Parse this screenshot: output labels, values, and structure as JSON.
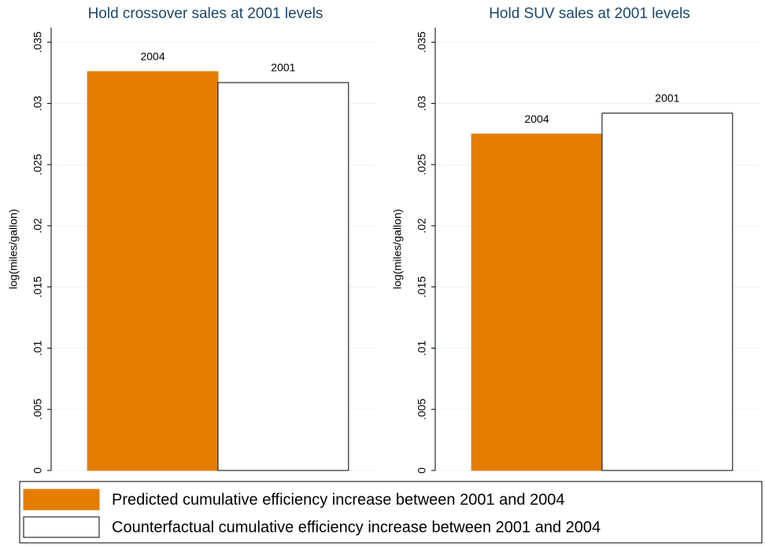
{
  "chart_data": [
    {
      "type": "bar",
      "title": "Hold crossover sales at 2001 levels",
      "y_label": "log(miles/gallon)",
      "bar_labels": [
        "2004",
        "2001"
      ],
      "values": [
        0.0326,
        0.0317
      ],
      "ylim": [
        0,
        0.0362
      ],
      "yticks": [
        0,
        {
          "value": 0.005,
          "label": ".005"
        },
        {
          "value": 0.01,
          "label": ".01"
        },
        {
          "value": 0.015,
          "label": ".015"
        },
        {
          "value": 0.02,
          "label": ".02"
        },
        {
          "value": 0.025,
          "label": ".025"
        },
        {
          "value": 0.03,
          "label": ".03"
        },
        {
          "value": 0.035,
          "label": ".035"
        }
      ],
      "grid": true
    },
    {
      "type": "bar",
      "title": "Hold SUV sales at 2001 levels",
      "y_label": "log(miles/gallon)",
      "bar_labels": [
        "2004",
        "2001"
      ],
      "values": [
        0.0275,
        0.0292
      ],
      "ylim": [
        0,
        0.0362
      ],
      "yticks": [
        0,
        {
          "value": 0.005,
          "label": ".005"
        },
        {
          "value": 0.01,
          "label": ".01"
        },
        {
          "value": 0.015,
          "label": ".015"
        },
        {
          "value": 0.02,
          "label": ".02"
        },
        {
          "value": 0.025,
          "label": ".025"
        },
        {
          "value": 0.03,
          "label": ".03"
        },
        {
          "value": 0.035,
          "label": ".035"
        }
      ],
      "grid": true
    }
  ],
  "legend": [
    {
      "name": "Predicted cumulative efficiency increase between 2001 and 2004",
      "color": "#e37e00"
    },
    {
      "name": "Counterfactual cumulative efficiency increase between 2001 and 2004",
      "color": "#ffffff"
    }
  ]
}
